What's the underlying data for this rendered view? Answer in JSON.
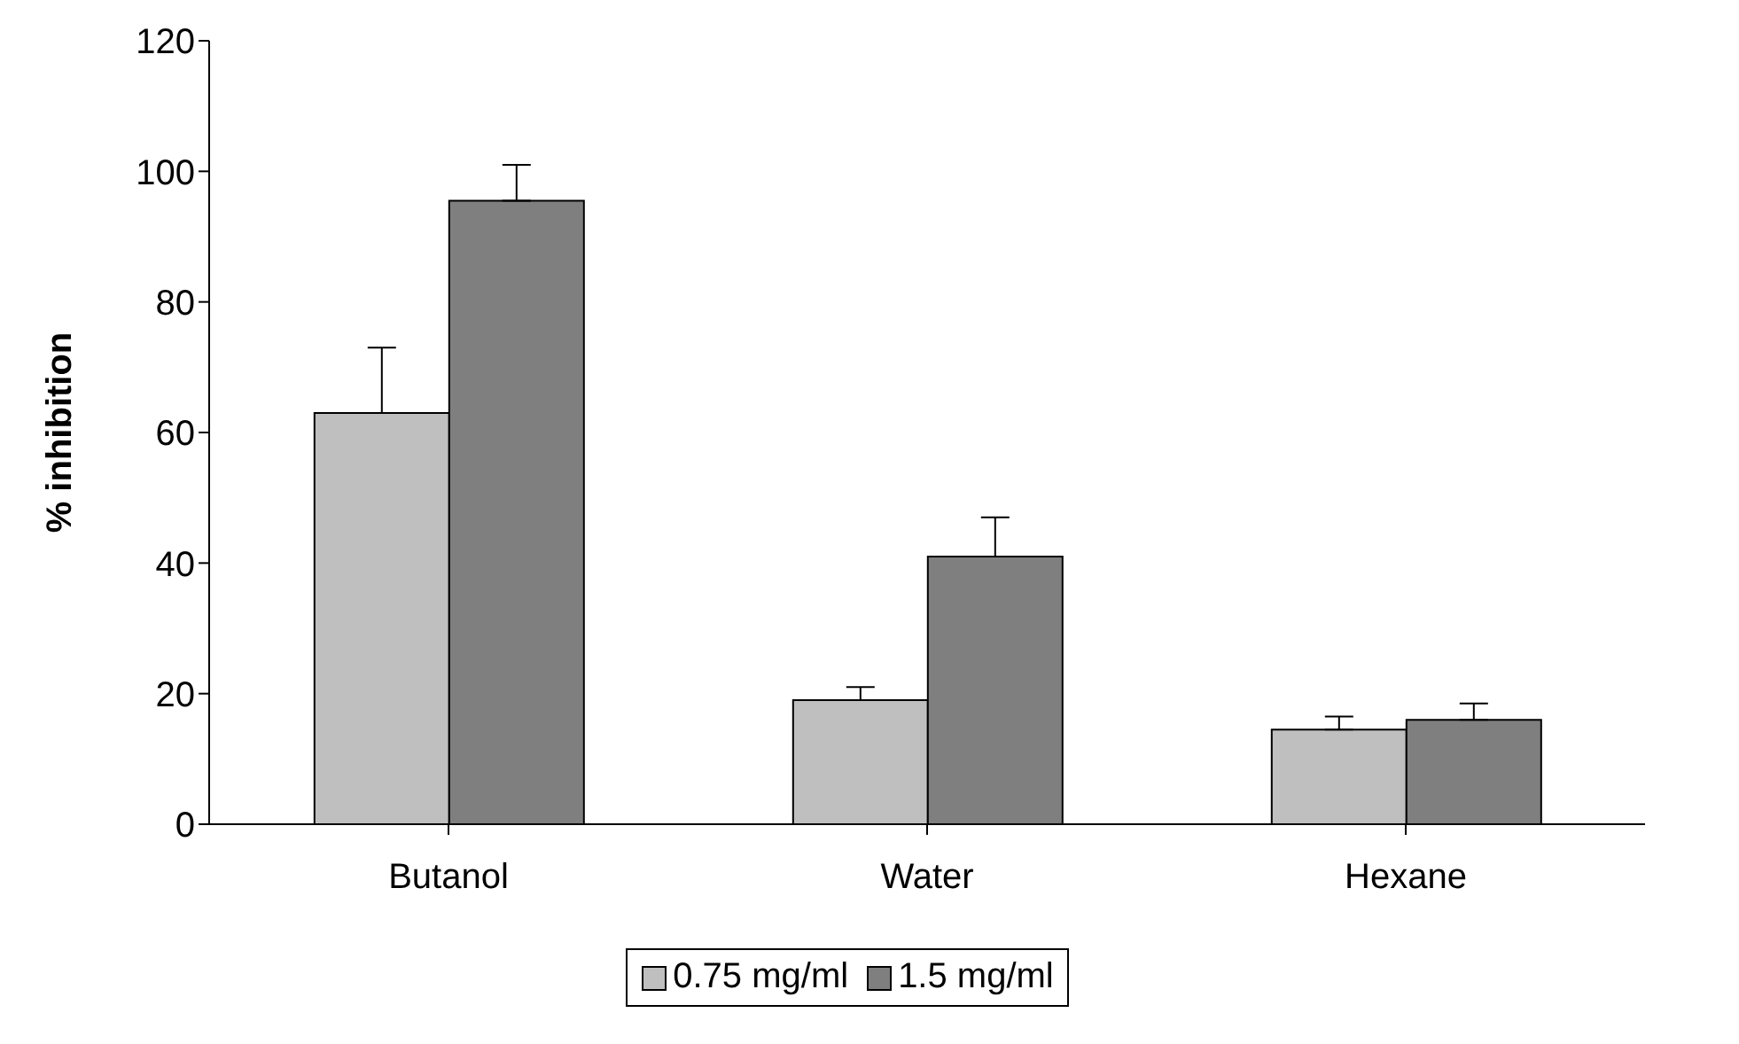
{
  "chart_data": {
    "type": "bar",
    "ylabel": "% inhibition",
    "categories": [
      "Butanol",
      "Water",
      "Hexane"
    ],
    "series": [
      {
        "name": "0.75 mg/ml",
        "color": "#bfbfbf",
        "values": [
          63,
          19,
          14.5
        ],
        "errors": [
          [
            63,
            73
          ],
          [
            19,
            21
          ],
          [
            14.5,
            16.5
          ]
        ]
      },
      {
        "name": "1.5 mg/ml",
        "color": "#7f7f7f",
        "values": [
          95.5,
          41,
          16
        ],
        "errors": [
          [
            95.5,
            101
          ],
          [
            41,
            47
          ],
          [
            16,
            18.5
          ]
        ]
      }
    ],
    "ylim": [
      0,
      120
    ],
    "yticks": [
      0,
      20,
      40,
      60,
      80,
      100,
      120
    ],
    "grid": false,
    "legend": "bottom"
  }
}
